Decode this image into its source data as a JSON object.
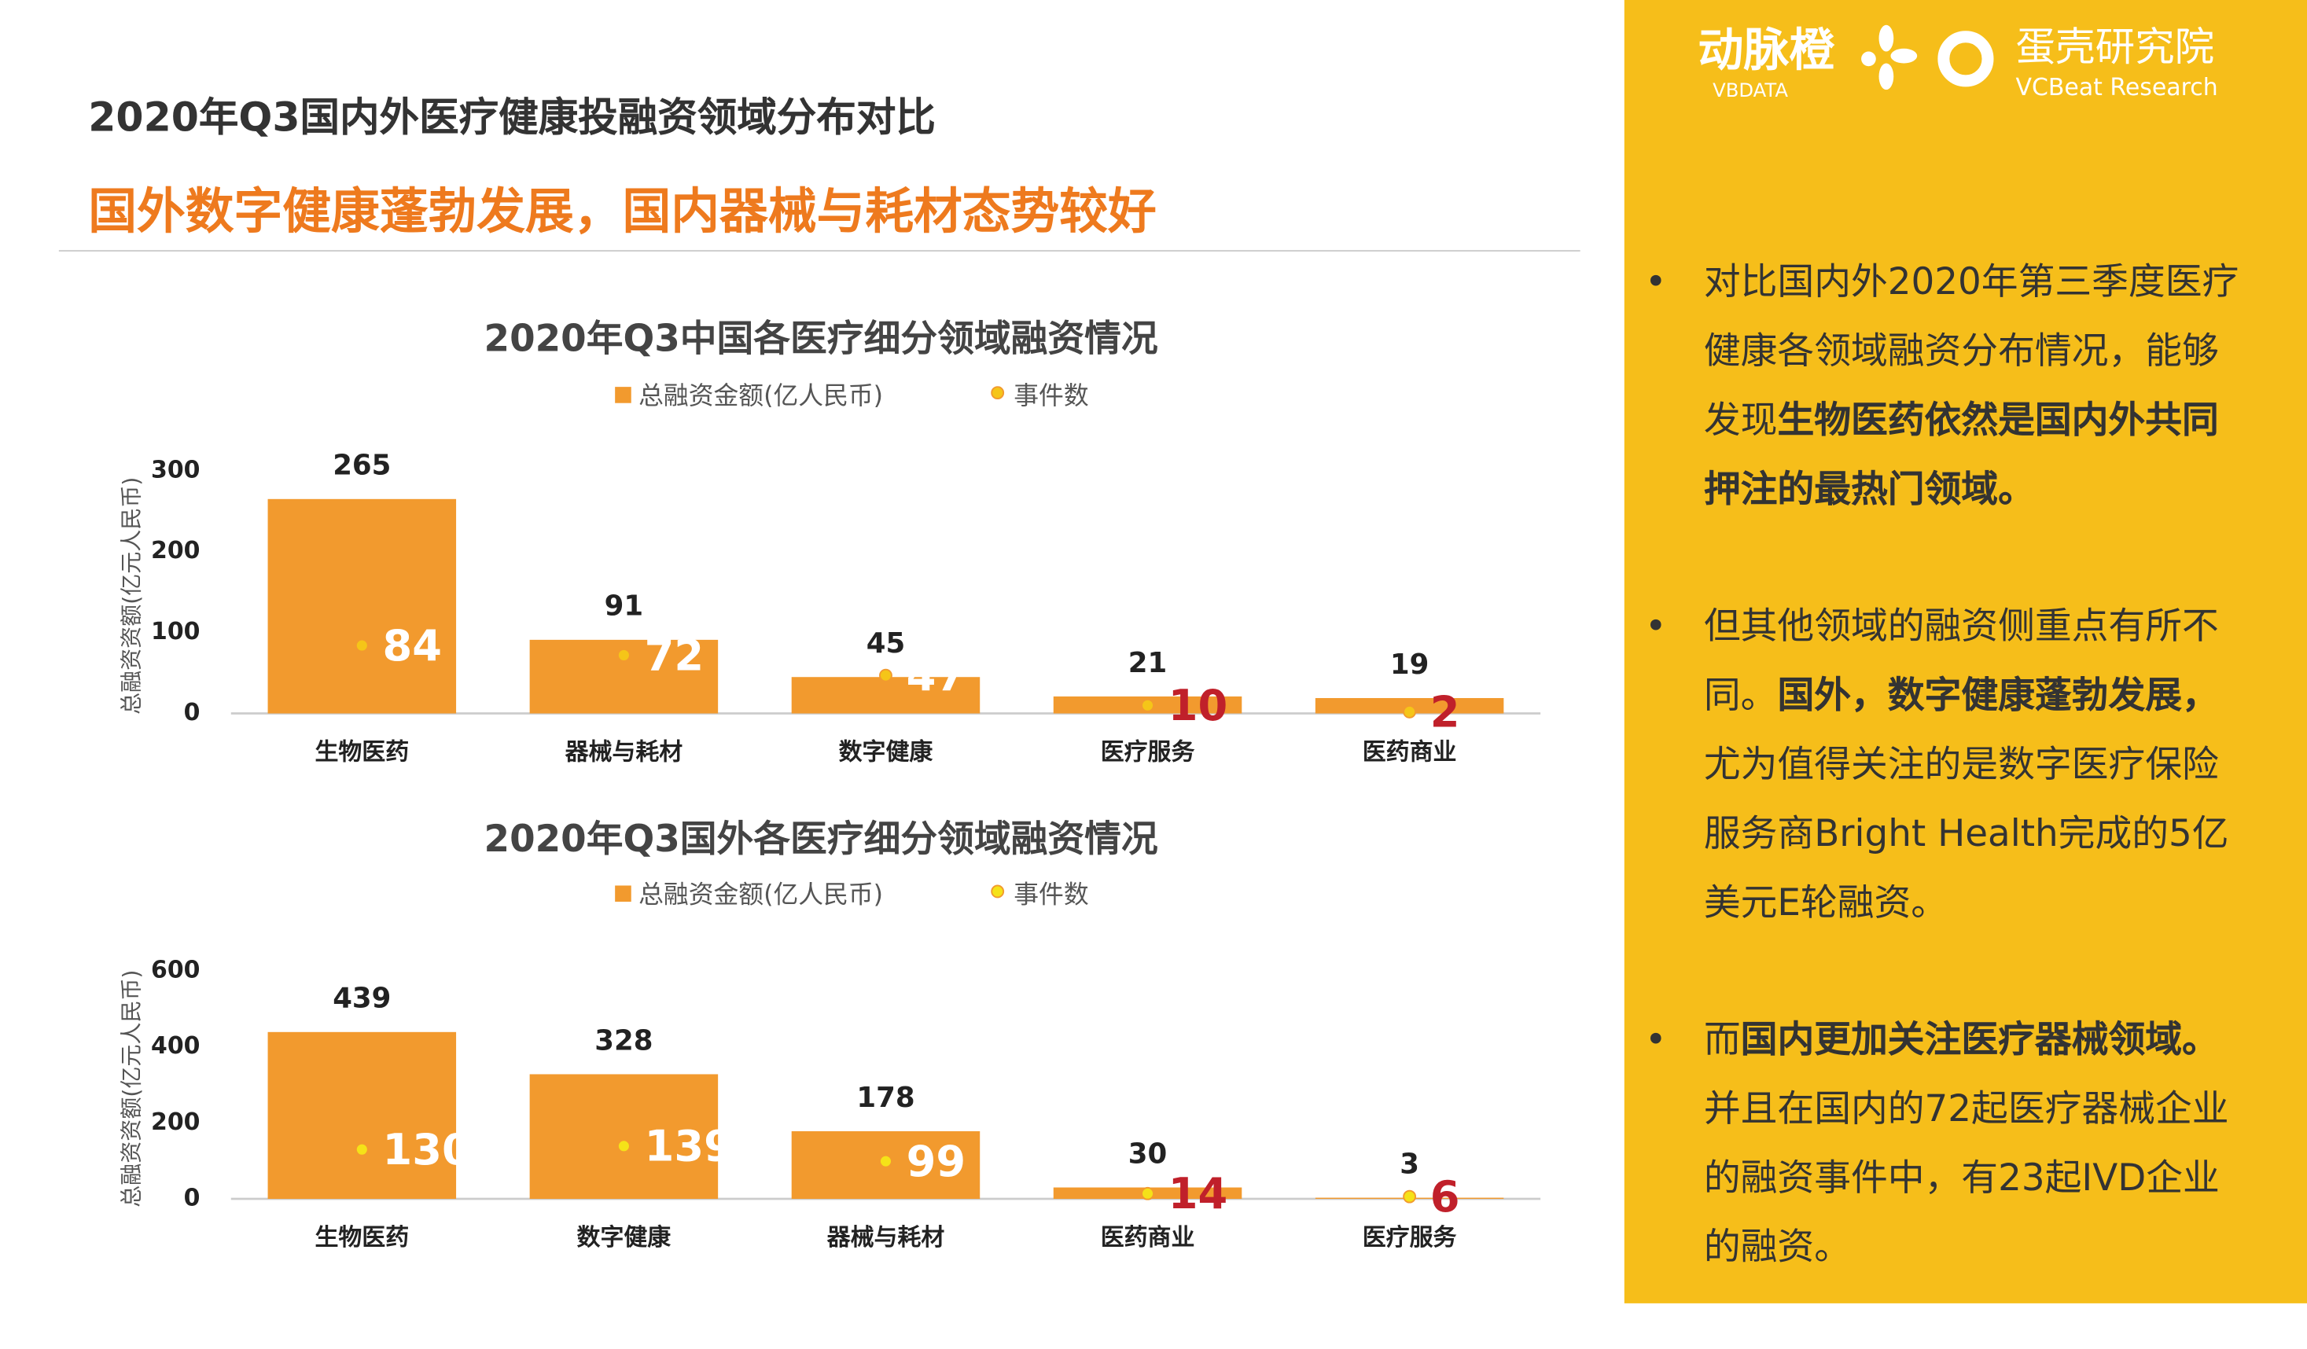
{
  "header": {
    "title": "2020年Q3国内外医疗健康投融资领域分布对比",
    "subtitle": "国外数字健康蓬勃发展，国内器械与耗材态势较好"
  },
  "logo": {
    "brand": "动脉橙",
    "brand_en": "VBDATA",
    "institute": "蛋壳研究院",
    "institute_en": "VCBeat Research"
  },
  "chart_data": [
    {
      "type": "bar",
      "title": "2020年Q3中国各医疗细分领域融资情况",
      "y_label": "总融资资额(亿元人民币)",
      "categories": [
        "生物医药",
        "器械与耗材",
        "数字健康",
        "医疗服务",
        "医药商业"
      ],
      "series": [
        {
          "name": "总融资金额(亿人民币)",
          "type": "bar",
          "color": "#F29A2E",
          "values": [
            265,
            91,
            45,
            21,
            19
          ]
        },
        {
          "name": "事件数",
          "type": "scatter",
          "color": "#F5C518",
          "values": [
            84,
            72,
            47,
            10,
            2
          ],
          "label_colors": [
            "#ffffff",
            "#ffffff",
            "#ffffff",
            "#C0202A",
            "#C0202A"
          ]
        }
      ],
      "ylim": [
        0,
        300
      ],
      "yticks": [
        0,
        100,
        200,
        300
      ]
    },
    {
      "type": "bar",
      "title": "2020年Q3国外各医疗细分领域融资情况",
      "y_label": "总融资资额(亿元人民币)",
      "categories": [
        "生物医药",
        "数字健康",
        "器械与耗材",
        "医药商业",
        "医疗服务"
      ],
      "series": [
        {
          "name": "总融资金额(亿人民币)",
          "type": "bar",
          "color": "#F29A2E",
          "values": [
            439,
            328,
            178,
            30,
            3
          ]
        },
        {
          "name": "事件数",
          "type": "scatter",
          "color": "#F5E218",
          "values": [
            130,
            139,
            99,
            14,
            6
          ],
          "label_colors": [
            "#ffffff",
            "#ffffff",
            "#ffffff",
            "#C0202A",
            "#C0202A"
          ]
        }
      ],
      "ylim": [
        0,
        600
      ],
      "yticks": [
        0,
        200,
        400,
        600
      ]
    }
  ],
  "sidebar": {
    "bullets": [
      [
        {
          "text": "对比国内外2020年第三季度医疗健康各领域融资分布情况，能够发现",
          "bold": false
        },
        {
          "text": "生物医药依然是国内外共同押注的最热门领域。",
          "bold": true
        }
      ],
      [
        {
          "text": "但其他领域的融资侧重点有所不同。",
          "bold": false
        },
        {
          "text": "国外，数字健康蓬勃发展，",
          "bold": true
        },
        {
          "text": "尤为值得关注的是数字医疗保险服务商Bright Health完成的5亿美元E轮融资。",
          "bold": false
        }
      ],
      [
        {
          "text": "而",
          "bold": false
        },
        {
          "text": "国内更加关注医疗器械领域。",
          "bold": true
        },
        {
          "text": "并且在国内的72起医疗器械企业的融资事件中，有23起IVD企业的融资。",
          "bold": false
        }
      ]
    ]
  }
}
